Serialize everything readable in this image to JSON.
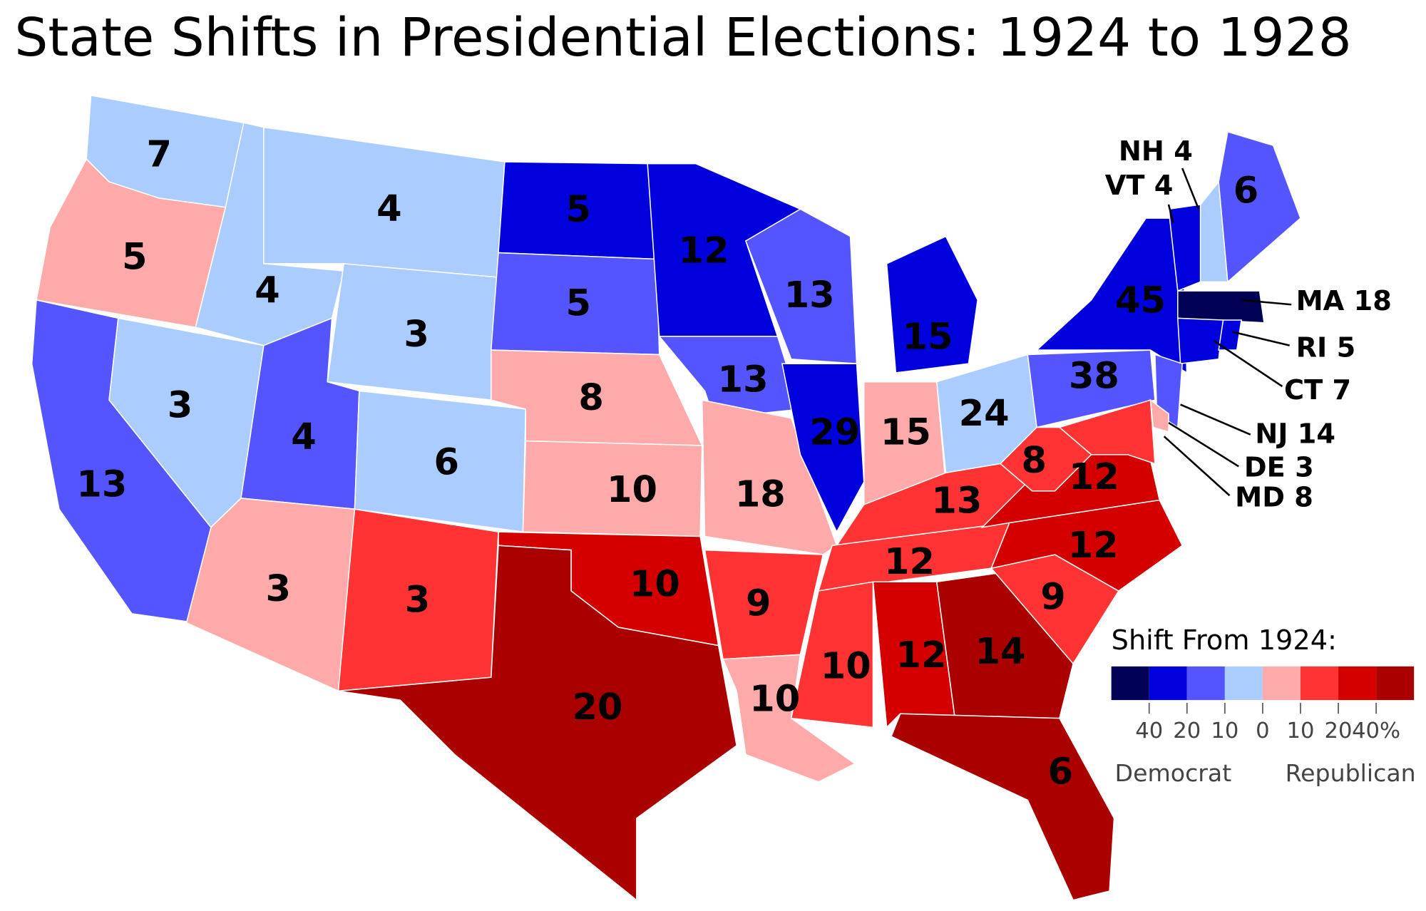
{
  "title": "State Shifts in Presidential Elections: 1924 to 1928",
  "states": [
    {
      "label": "7",
      "color": "#aaccff"
    },
    {
      "label": "5",
      "color": "#ffaaaa"
    },
    {
      "label": "13",
      "color": "#5555ff"
    },
    {
      "label": "3",
      "color": "#aaccff"
    },
    {
      "label": "4",
      "color": "#aaccff"
    },
    {
      "label": "4",
      "color": "#aaccff"
    },
    {
      "label": "3",
      "color": "#aaccff"
    },
    {
      "label": "4",
      "color": "#5555ff"
    },
    {
      "label": "6",
      "color": "#aaccff"
    },
    {
      "label": "3",
      "color": "#ffaaaa"
    },
    {
      "label": "3",
      "color": "#ff3333"
    },
    {
      "label": "5",
      "color": "#0000dd"
    },
    {
      "label": "5",
      "color": "#5555ff"
    },
    {
      "label": "8",
      "color": "#ffaaaa"
    },
    {
      "label": "10",
      "color": "#ffaaaa"
    },
    {
      "label": "10",
      "color": "#d40000"
    },
    {
      "label": "20",
      "color": "#aa0000"
    },
    {
      "label": "12",
      "color": "#0000dd"
    },
    {
      "label": "13",
      "color": "#5555ff"
    },
    {
      "label": "18",
      "color": "#ffaaaa"
    },
    {
      "label": "9",
      "color": "#ff3333"
    },
    {
      "label": "10",
      "color": "#ffaaaa"
    },
    {
      "label": "13",
      "color": "#5555ff"
    },
    {
      "label": "29",
      "color": "#0000dd"
    },
    {
      "label": "15",
      "color": "#0000dd"
    },
    {
      "label": "15",
      "color": "#ffaaaa"
    },
    {
      "label": "24",
      "color": "#aaccff"
    },
    {
      "label": "13",
      "color": "#ff3333"
    },
    {
      "label": "12",
      "color": "#ff3333"
    },
    {
      "label": "10",
      "color": "#ff3333"
    },
    {
      "label": "12",
      "color": "#d40000"
    },
    {
      "label": "14",
      "color": "#aa0000"
    },
    {
      "label": "6",
      "color": "#aa0000"
    },
    {
      "label": "9",
      "color": "#ff3333"
    },
    {
      "label": "12",
      "color": "#d40000"
    },
    {
      "label": "12",
      "color": "#d40000"
    },
    {
      "label": "8",
      "color": "#ff3333"
    },
    {
      "label": "38",
      "color": "#5555ff"
    },
    {
      "label": "45",
      "color": "#0000dd"
    },
    {
      "label": "VT 4",
      "color": "#0000dd"
    },
    {
      "label": "NH 4",
      "color": "#aaccff"
    },
    {
      "label": "6",
      "color": "#5555ff"
    },
    {
      "label": "MA 18",
      "color": "#000055"
    },
    {
      "label": "CT 7",
      "color": "#0000dd"
    },
    {
      "label": "RI 5",
      "color": "#0000dd"
    },
    {
      "label": "NJ 14",
      "color": "#5555ff"
    },
    {
      "label": "DE 3",
      "color": "#ffaaaa"
    },
    {
      "label": "MD 8",
      "color": "#ff3333"
    }
  ],
  "legend": {
    "title": "Shift From 1924:",
    "colors": [
      "#000055",
      "#0000dd",
      "#5555ff",
      "#aaccff",
      "#ffaaaa",
      "#ff3333",
      "#d40000",
      "#aa0000"
    ],
    "ticks": [
      "40",
      "20",
      "10",
      "0",
      "10",
      "20",
      "40%"
    ],
    "left_label": "Democrat",
    "right_label": "Republican"
  }
}
